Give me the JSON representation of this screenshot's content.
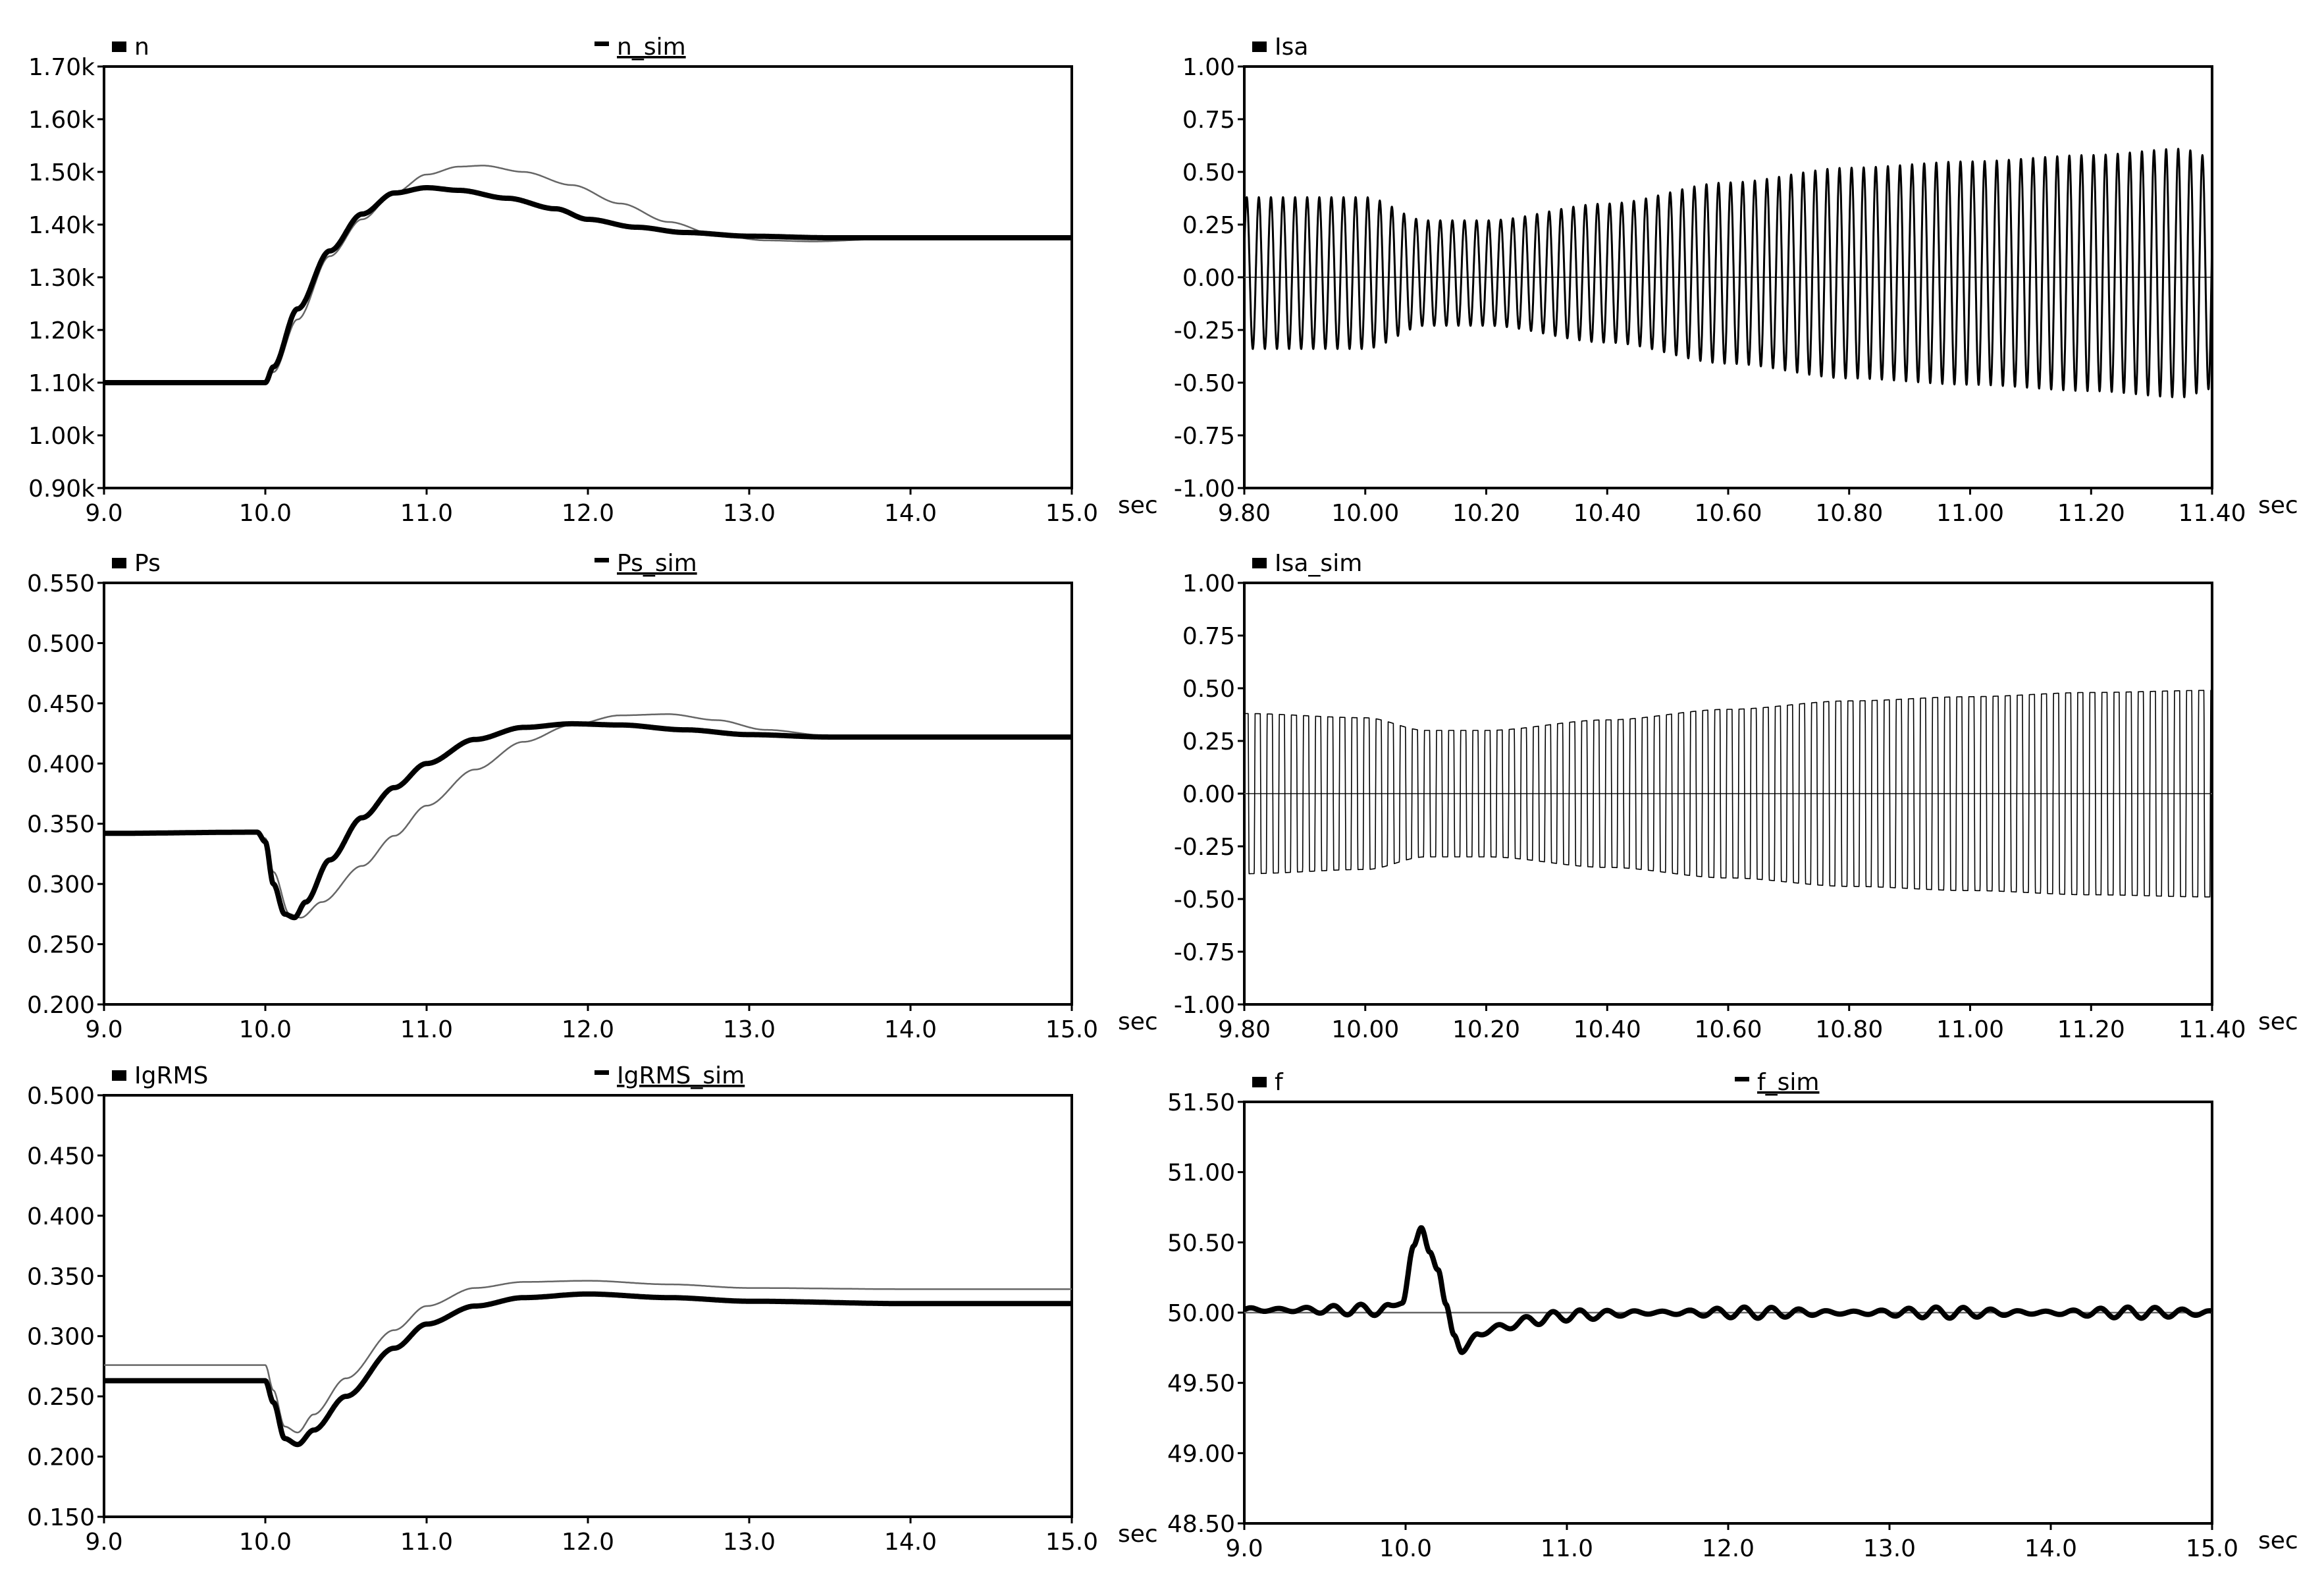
{
  "charts": [
    {
      "id": "n",
      "ylim": [
        900,
        1700
      ],
      "yticks": [
        {
          "v": 1700,
          "label": "1.70k"
        },
        {
          "v": 1600,
          "label": "1.60k"
        },
        {
          "v": 1500,
          "label": "1.50k"
        },
        {
          "v": 1400,
          "label": "1.40k"
        },
        {
          "v": 1300,
          "label": "1.30k"
        },
        {
          "v": 1200,
          "label": "1.20k"
        },
        {
          "v": 1100,
          "label": "1.10k"
        },
        {
          "v": 1000,
          "label": "1.00k"
        },
        {
          "v": 900,
          "label": "0.90k"
        }
      ],
      "xlim": [
        9,
        15
      ],
      "xticks": [
        {
          "v": 9,
          "label": "9.0"
        },
        {
          "v": 10,
          "label": "10.0"
        },
        {
          "v": 11,
          "label": "11.0"
        },
        {
          "v": 12,
          "label": "12.0"
        },
        {
          "v": 13,
          "label": "13.0"
        },
        {
          "v": 14,
          "label": "14.0"
        },
        {
          "v": 15,
          "label": "15.0"
        }
      ],
      "xunit": "sec",
      "legend": [
        "n",
        "n_sim"
      ],
      "series": [
        {
          "name": "n",
          "kind": "thick",
          "x": [
            9,
            10,
            10.05,
            10.2,
            10.4,
            10.6,
            10.8,
            11.0,
            11.2,
            11.5,
            11.8,
            12.0,
            12.3,
            12.6,
            13.0,
            13.5,
            14.0,
            15.0
          ],
          "y": [
            1100,
            1100,
            1130,
            1240,
            1350,
            1420,
            1460,
            1470,
            1465,
            1450,
            1430,
            1410,
            1395,
            1385,
            1378,
            1375,
            1375,
            1375
          ]
        },
        {
          "name": "n_sim",
          "kind": "thin",
          "x": [
            9,
            10,
            10.05,
            10.2,
            10.4,
            10.6,
            10.8,
            11.0,
            11.2,
            11.35,
            11.6,
            11.9,
            12.2,
            12.5,
            12.8,
            13.1,
            13.4,
            13.8,
            14.2,
            15.0
          ],
          "y": [
            1100,
            1100,
            1120,
            1220,
            1340,
            1410,
            1460,
            1495,
            1510,
            1512,
            1500,
            1475,
            1440,
            1405,
            1380,
            1370,
            1368,
            1372,
            1375,
            1375
          ]
        }
      ]
    },
    {
      "id": "Isa",
      "ylim": [
        -1,
        1
      ],
      "yticks": [
        {
          "v": 1,
          "label": "1.00"
        },
        {
          "v": 0.75,
          "label": "0.75"
        },
        {
          "v": 0.5,
          "label": "0.50"
        },
        {
          "v": 0.25,
          "label": "0.25"
        },
        {
          "v": 0,
          "label": "0.00"
        },
        {
          "v": -0.25,
          "label": "-0.25"
        },
        {
          "v": -0.5,
          "label": "-0.50"
        },
        {
          "v": -0.75,
          "label": "-0.75"
        },
        {
          "v": -1,
          "label": "-1.00"
        }
      ],
      "xlim": [
        9.8,
        11.4
      ],
      "xticks": [
        {
          "v": 9.8,
          "label": "9.80"
        },
        {
          "v": 10.0,
          "label": "10.00"
        },
        {
          "v": 10.2,
          "label": "10.20"
        },
        {
          "v": 10.4,
          "label": "10.40"
        },
        {
          "v": 10.6,
          "label": "10.60"
        },
        {
          "v": 10.8,
          "label": "10.80"
        },
        {
          "v": 11.0,
          "label": "11.00"
        },
        {
          "v": 11.2,
          "label": "11.20"
        },
        {
          "v": 11.4,
          "label": "11.40"
        }
      ],
      "xunit": "sec",
      "legend": [
        "Isa"
      ],
      "zero_line": true,
      "series": [
        {
          "name": "Isa",
          "kind": "osc",
          "freq_hz": 50,
          "phase": 0.3,
          "wave": "sine",
          "offset": 0.02,
          "width": 3,
          "env_t": [
            9.8,
            10.0,
            10.1,
            10.2,
            10.4,
            10.6,
            10.8,
            11.0,
            11.2,
            11.35,
            11.4
          ],
          "env_a": [
            0.36,
            0.36,
            0.25,
            0.25,
            0.33,
            0.43,
            0.5,
            0.53,
            0.56,
            0.59,
            0.55
          ]
        }
      ]
    },
    {
      "id": "Ps",
      "ylim": [
        0.2,
        0.55
      ],
      "yticks": [
        {
          "v": 0.55,
          "label": "0.550"
        },
        {
          "v": 0.5,
          "label": "0.500"
        },
        {
          "v": 0.45,
          "label": "0.450"
        },
        {
          "v": 0.4,
          "label": "0.400"
        },
        {
          "v": 0.35,
          "label": "0.350"
        },
        {
          "v": 0.3,
          "label": "0.300"
        },
        {
          "v": 0.25,
          "label": "0.250"
        },
        {
          "v": 0.2,
          "label": "0.200"
        }
      ],
      "xlim": [
        9,
        15
      ],
      "xticks": [
        {
          "v": 9,
          "label": "9.0"
        },
        {
          "v": 10,
          "label": "10.0"
        },
        {
          "v": 11,
          "label": "11.0"
        },
        {
          "v": 12,
          "label": "12.0"
        },
        {
          "v": 13,
          "label": "13.0"
        },
        {
          "v": 14,
          "label": "14.0"
        },
        {
          "v": 15,
          "label": "15.0"
        }
      ],
      "xunit": "sec",
      "legend": [
        "Ps",
        "Ps_sim"
      ],
      "series": [
        {
          "name": "Ps",
          "kind": "thick",
          "x": [
            9,
            9.95,
            10.0,
            10.05,
            10.12,
            10.18,
            10.25,
            10.4,
            10.6,
            10.8,
            11.0,
            11.3,
            11.6,
            11.9,
            12.2,
            12.6,
            13.0,
            13.5,
            14.0,
            15.0
          ],
          "y": [
            0.342,
            0.343,
            0.335,
            0.3,
            0.275,
            0.272,
            0.285,
            0.32,
            0.355,
            0.38,
            0.4,
            0.42,
            0.43,
            0.433,
            0.432,
            0.428,
            0.424,
            0.422,
            0.422,
            0.422
          ]
        },
        {
          "name": "Ps_sim",
          "kind": "thin",
          "x": [
            9,
            9.95,
            10.0,
            10.05,
            10.15,
            10.22,
            10.35,
            10.6,
            10.8,
            11.0,
            11.3,
            11.6,
            11.9,
            12.2,
            12.5,
            12.8,
            13.1,
            13.5,
            14.0,
            15.0
          ],
          "y": [
            0.342,
            0.342,
            0.338,
            0.31,
            0.275,
            0.272,
            0.285,
            0.315,
            0.34,
            0.365,
            0.395,
            0.418,
            0.432,
            0.44,
            0.441,
            0.436,
            0.428,
            0.423,
            0.422,
            0.422
          ]
        }
      ]
    },
    {
      "id": "Isa_sim",
      "ylim": [
        -1,
        1
      ],
      "yticks": [
        {
          "v": 1,
          "label": "1.00"
        },
        {
          "v": 0.75,
          "label": "0.75"
        },
        {
          "v": 0.5,
          "label": "0.50"
        },
        {
          "v": 0.25,
          "label": "0.25"
        },
        {
          "v": 0,
          "label": "0.00"
        },
        {
          "v": -0.25,
          "label": "-0.25"
        },
        {
          "v": -0.5,
          "label": "-0.50"
        },
        {
          "v": -0.75,
          "label": "-0.75"
        },
        {
          "v": -1,
          "label": "-1.00"
        }
      ],
      "xlim": [
        9.8,
        11.4
      ],
      "xticks": [
        {
          "v": 9.8,
          "label": "9.80"
        },
        {
          "v": 10.0,
          "label": "10.00"
        },
        {
          "v": 10.2,
          "label": "10.20"
        },
        {
          "v": 10.4,
          "label": "10.40"
        },
        {
          "v": 10.6,
          "label": "10.60"
        },
        {
          "v": 10.8,
          "label": "10.80"
        },
        {
          "v": 11.0,
          "label": "11.00"
        },
        {
          "v": 11.2,
          "label": "11.20"
        },
        {
          "v": 11.4,
          "label": "11.40"
        }
      ],
      "xunit": "sec",
      "legend": [
        "Isa_sim"
      ],
      "zero_line": true,
      "series": [
        {
          "name": "Isa_sim",
          "kind": "osc",
          "freq_hz": 50,
          "phase": 0.9,
          "wave": "square",
          "offset": 0,
          "width": 1.6,
          "env_t": [
            9.8,
            10.0,
            10.1,
            10.2,
            10.4,
            10.6,
            10.8,
            11.0,
            11.2,
            11.4
          ],
          "env_a": [
            0.38,
            0.36,
            0.3,
            0.3,
            0.35,
            0.4,
            0.44,
            0.46,
            0.48,
            0.49
          ]
        }
      ]
    },
    {
      "id": "IgRMS",
      "ylim": [
        0.15,
        0.5
      ],
      "yticks": [
        {
          "v": 0.5,
          "label": "0.500"
        },
        {
          "v": 0.45,
          "label": "0.450"
        },
        {
          "v": 0.4,
          "label": "0.400"
        },
        {
          "v": 0.35,
          "label": "0.350"
        },
        {
          "v": 0.3,
          "label": "0.300"
        },
        {
          "v": 0.25,
          "label": "0.250"
        },
        {
          "v": 0.2,
          "label": "0.200"
        },
        {
          "v": 0.15,
          "label": "0.150"
        }
      ],
      "xlim": [
        9,
        15
      ],
      "xticks": [
        {
          "v": 9,
          "label": "9.0"
        },
        {
          "v": 10,
          "label": "10.0"
        },
        {
          "v": 11,
          "label": "11.0"
        },
        {
          "v": 12,
          "label": "12.0"
        },
        {
          "v": 13,
          "label": "13.0"
        },
        {
          "v": 14,
          "label": "14.0"
        },
        {
          "v": 15,
          "label": "15.0"
        }
      ],
      "xunit": "sec",
      "legend": [
        "IgRMS",
        "IgRMS_sim"
      ],
      "series": [
        {
          "name": "IgRMS",
          "kind": "thick",
          "x": [
            9,
            10.0,
            10.05,
            10.12,
            10.2,
            10.3,
            10.5,
            10.8,
            11.0,
            11.3,
            11.6,
            12.0,
            12.5,
            13.0,
            14.0,
            15.0
          ],
          "y": [
            0.263,
            0.263,
            0.245,
            0.215,
            0.21,
            0.222,
            0.25,
            0.29,
            0.31,
            0.325,
            0.332,
            0.335,
            0.332,
            0.329,
            0.327,
            0.327
          ]
        },
        {
          "name": "IgRMS_sim",
          "kind": "thin",
          "x": [
            9,
            10.0,
            10.05,
            10.12,
            10.2,
            10.3,
            10.5,
            10.8,
            11.0,
            11.3,
            11.6,
            12.0,
            12.5,
            13.0,
            14.0,
            15.0
          ],
          "y": [
            0.276,
            0.276,
            0.255,
            0.225,
            0.22,
            0.235,
            0.265,
            0.305,
            0.325,
            0.34,
            0.345,
            0.346,
            0.343,
            0.34,
            0.339,
            0.339
          ]
        }
      ]
    },
    {
      "id": "f",
      "ylim": [
        48.5,
        51.5
      ],
      "yticks": [
        {
          "v": 51.5,
          "label": "51.50"
        },
        {
          "v": 51.0,
          "label": "51.00"
        },
        {
          "v": 50.5,
          "label": "50.50"
        },
        {
          "v": 50.0,
          "label": "50.00"
        },
        {
          "v": 49.5,
          "label": "49.50"
        },
        {
          "v": 49.0,
          "label": "49.00"
        },
        {
          "v": 48.5,
          "label": "48.50"
        }
      ],
      "xlim": [
        9,
        15
      ],
      "xticks": [
        {
          "v": 9,
          "label": "9.0"
        },
        {
          "v": 10,
          "label": "10.0"
        },
        {
          "v": 11,
          "label": "11.0"
        },
        {
          "v": 12,
          "label": "12.0"
        },
        {
          "v": 13,
          "label": "13.0"
        },
        {
          "v": 14,
          "label": "14.0"
        },
        {
          "v": 15,
          "label": "15.0"
        }
      ],
      "xunit": "sec",
      "legend": [
        "f",
        "f_sim"
      ],
      "series": [
        {
          "name": "f",
          "kind": "thick",
          "x": [
            9,
            9.9,
            9.98,
            10.05,
            10.1,
            10.15,
            10.2,
            10.25,
            10.3,
            10.35,
            10.45,
            10.6,
            10.8,
            11.0,
            11.5,
            12.0,
            13.0,
            14.0,
            15.0
          ],
          "y": [
            50.02,
            50.02,
            50.1,
            50.45,
            50.6,
            50.45,
            50.3,
            50.05,
            49.85,
            49.72,
            49.85,
            49.9,
            49.95,
            49.98,
            50.0,
            50.0,
            50.0,
            50.0,
            50.0
          ],
          "wiggle": 0.025
        },
        {
          "name": "f_sim",
          "kind": "thin",
          "x": [
            9,
            15
          ],
          "y": [
            50.0,
            50.0
          ]
        }
      ]
    }
  ]
}
